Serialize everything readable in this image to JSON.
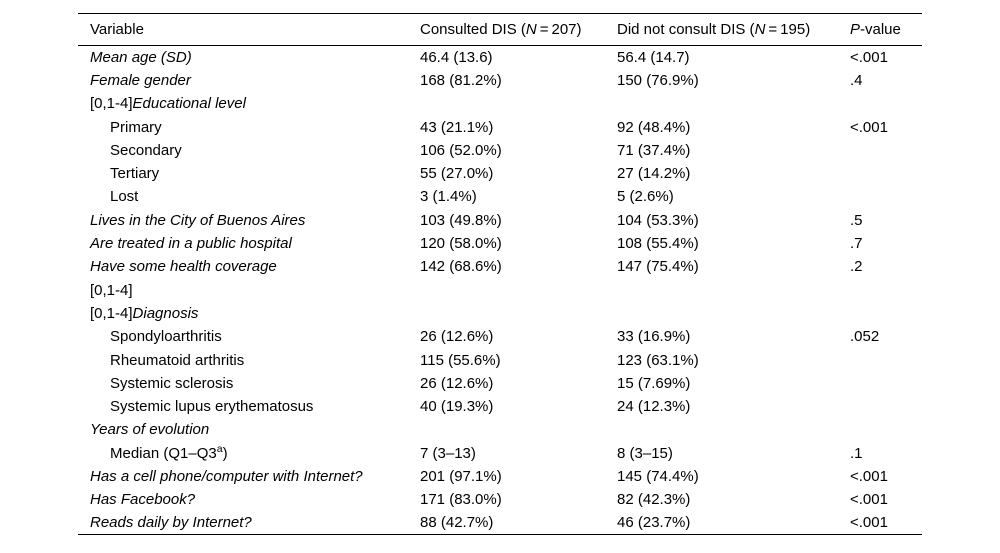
{
  "page": {
    "background": "#ffffff",
    "text_color": "#000000",
    "rule_color": "#000000"
  },
  "table": {
    "columns": [
      {
        "key": "variable",
        "text": "Variable"
      },
      {
        "key": "consulted-dis",
        "pre": "Consulted DIS (",
        "it": "N",
        "post": " = 207)"
      },
      {
        "key": "did-not-consult-dis",
        "pre": "Did not consult DIS (",
        "it": "N",
        "post": " = 195)"
      },
      {
        "key": "p-value",
        "pre": "",
        "it": "P",
        "post": "-value"
      }
    ],
    "rows": [
      {
        "label": "Mean age (SD)",
        "italic": true,
        "c1": "46.4 (13.6)",
        "c2": "56.4 (14.7)",
        "p": "<.001"
      },
      {
        "label": "Female gender",
        "italic": true,
        "c1": "168 (81.2%)",
        "c2": "150 (76.9%)",
        "p": ".4"
      },
      {
        "prefix": "[0,1-4]",
        "label": "Educational level",
        "italic": true,
        "c1": "",
        "c2": "",
        "p": ""
      },
      {
        "label": "Primary",
        "indent": true,
        "c1": "43 (21.1%)",
        "c2": "92 (48.4%)",
        "p": "<.001"
      },
      {
        "label": "Secondary",
        "indent": true,
        "c1": "106 (52.0%)",
        "c2": "71 (37.4%)",
        "p": ""
      },
      {
        "label": "Tertiary",
        "indent": true,
        "c1": "55 (27.0%)",
        "c2": "27 (14.2%)",
        "p": ""
      },
      {
        "label": "Lost",
        "indent": true,
        "c1": "3 (1.4%)",
        "c2": "5 (2.6%)",
        "p": ""
      },
      {
        "label": "Lives in the City of Buenos Aires",
        "italic": true,
        "c1": "103 (49.8%)",
        "c2": "104 (53.3%)",
        "p": ".5"
      },
      {
        "label": "Are treated in a public hospital",
        "italic": true,
        "c1": "120 (58.0%)",
        "c2": "108 (55.4%)",
        "p": ".7"
      },
      {
        "label": "Have some health coverage",
        "italic": true,
        "c1": "142 (68.6%)",
        "c2": "147 (75.4%)",
        "p": ".2"
      },
      {
        "prefix": "[0,1-4]",
        "label": "",
        "c1": "",
        "c2": "",
        "p": ""
      },
      {
        "prefix": "[0,1-4]",
        "label": "Diagnosis",
        "italic": true,
        "c1": "",
        "c2": "",
        "p": ""
      },
      {
        "label": "Spondyloarthritis",
        "indent": true,
        "c1": "26 (12.6%)",
        "c2": "33 (16.9%)",
        "p": ".052"
      },
      {
        "label": "Rheumatoid arthritis",
        "indent": true,
        "c1": "115 (55.6%)",
        "c2": "123 (63.1%)",
        "p": ""
      },
      {
        "label": "Systemic sclerosis",
        "indent": true,
        "c1": "26 (12.6%)",
        "c2": "15 (7.69%)",
        "p": ""
      },
      {
        "label": "Systemic lupus erythematosus",
        "indent": true,
        "c1": "40 (19.3%)",
        "c2": "24 (12.3%)",
        "p": ""
      },
      {
        "label": "Years of evolution",
        "italic": true,
        "c1": "",
        "c2": "",
        "p": ""
      },
      {
        "label": "Median (Q1–Q3",
        "sup": "a",
        "label_end": ")",
        "indent": true,
        "c1": "7 (3–13)",
        "c2": "8 (3–15)",
        "p": ".1"
      },
      {
        "label": "Has a cell phone/computer with Internet?",
        "italic": true,
        "c1": "201 (97.1%)",
        "c2": "145 (74.4%)",
        "p": "<.001"
      },
      {
        "label": "Has Facebook?",
        "italic": true,
        "c1": "171 (83.0%)",
        "c2": "82 (42.3%)",
        "p": "<.001"
      },
      {
        "label": "Reads daily by Internet?",
        "italic": true,
        "c1": "88 (42.7%)",
        "c2": "46 (23.7%)",
        "p": "<.001"
      }
    ]
  }
}
